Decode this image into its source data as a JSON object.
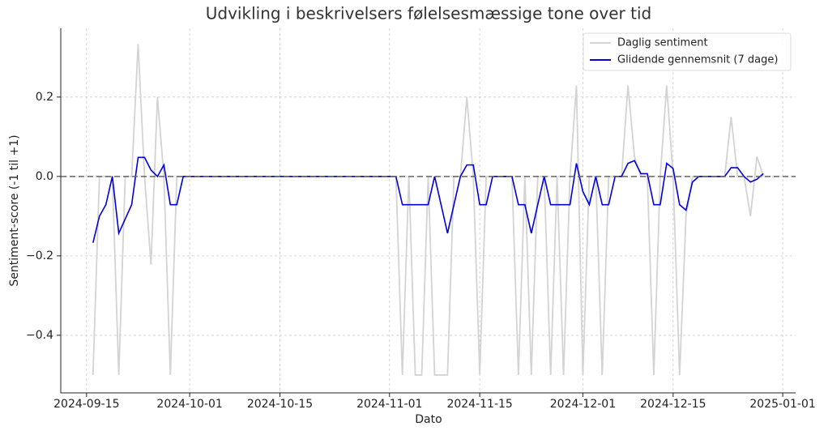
{
  "chart_data": {
    "type": "line",
    "title": "Udvikling i beskrivelsers følelsesmæssige tone over tid",
    "x_label": "Dato",
    "y_label": "Sentiment-score (-1 til +1)",
    "x": [
      "2024-09-16",
      "2024-09-17",
      "2024-09-18",
      "2024-09-19",
      "2024-09-20",
      "2024-09-21",
      "2024-09-22",
      "2024-09-23",
      "2024-09-24",
      "2024-09-25",
      "2024-09-26",
      "2024-09-27",
      "2024-09-28",
      "2024-09-29",
      "2024-09-30",
      "2024-10-01",
      "2024-10-02",
      "2024-10-03",
      "2024-10-04",
      "2024-10-05",
      "2024-10-06",
      "2024-10-07",
      "2024-10-08",
      "2024-10-09",
      "2024-10-10",
      "2024-10-11",
      "2024-10-12",
      "2024-10-13",
      "2024-10-14",
      "2024-10-15",
      "2024-10-16",
      "2024-10-17",
      "2024-10-18",
      "2024-10-19",
      "2024-10-20",
      "2024-10-21",
      "2024-10-22",
      "2024-10-23",
      "2024-10-24",
      "2024-10-25",
      "2024-10-26",
      "2024-10-27",
      "2024-10-28",
      "2024-10-29",
      "2024-10-30",
      "2024-10-31",
      "2024-11-01",
      "2024-11-02",
      "2024-11-03",
      "2024-11-04",
      "2024-11-05",
      "2024-11-06",
      "2024-11-07",
      "2024-11-08",
      "2024-11-09",
      "2024-11-10",
      "2024-11-11",
      "2024-11-12",
      "2024-11-13",
      "2024-11-14",
      "2024-11-15",
      "2024-11-16",
      "2024-11-17",
      "2024-11-18",
      "2024-11-19",
      "2024-11-20",
      "2024-11-21",
      "2024-11-22",
      "2024-11-23",
      "2024-11-24",
      "2024-11-25",
      "2024-11-26",
      "2024-11-27",
      "2024-11-28",
      "2024-11-29",
      "2024-11-30",
      "2024-12-01",
      "2024-12-02",
      "2024-12-03",
      "2024-12-04",
      "2024-12-05",
      "2024-12-06",
      "2024-12-07",
      "2024-12-08",
      "2024-12-09",
      "2024-12-10",
      "2024-12-11",
      "2024-12-12",
      "2024-12-13",
      "2024-12-14",
      "2024-12-15",
      "2024-12-16",
      "2024-12-17",
      "2024-12-18",
      "2024-12-19",
      "2024-12-20",
      "2024-12-21",
      "2024-12-22",
      "2024-12-23",
      "2024-12-24",
      "2024-12-25",
      "2024-12-26",
      "2024-12-27",
      "2024-12-28",
      "2024-12-29"
    ],
    "series": [
      {
        "name": "Daglig sentiment",
        "color": "#d3d3d3",
        "values": [
          -0.5,
          0,
          0,
          0,
          -0.5,
          0,
          0,
          0.333,
          0,
          -0.222,
          0.2,
          0,
          -0.5,
          0,
          0,
          0,
          0,
          0,
          0,
          0,
          0,
          0,
          0,
          0,
          0,
          0,
          0,
          0,
          0,
          0,
          0,
          0,
          0,
          0,
          0,
          0,
          0,
          0,
          0,
          0,
          0,
          0,
          0,
          0,
          0,
          0,
          0,
          0,
          -0.5,
          0,
          -0.5,
          -0.5,
          0,
          -0.5,
          -0.5,
          -0.5,
          0,
          0,
          0.2,
          0,
          -0.5,
          0,
          0,
          0,
          0,
          0,
          -0.5,
          0,
          -0.5,
          0,
          0,
          -0.5,
          0,
          -0.5,
          0,
          0.229,
          -0.5,
          0,
          0,
          -0.5,
          0,
          0,
          0,
          0.229,
          0.05,
          0,
          0,
          -0.5,
          0,
          0.229,
          0,
          -0.5,
          -0.1,
          0,
          0,
          0,
          0,
          0,
          0,
          0.15,
          0,
          0,
          -0.1,
          0.05,
          0
        ]
      },
      {
        "name": "Glidende gennemsnit (7 dage)",
        "color": "#0000dd",
        "values": [
          -0.167,
          -0.1,
          -0.071,
          0,
          -0.143,
          -0.107,
          -0.071,
          0.048,
          0.048,
          0.016,
          0,
          0.029,
          -0.071,
          -0.071,
          0,
          0,
          0,
          0,
          0,
          0,
          0,
          0,
          0,
          0,
          0,
          0,
          0,
          0,
          0,
          0,
          0,
          0,
          0,
          0,
          0,
          0,
          0,
          0,
          0,
          0,
          0,
          0,
          0,
          0,
          0,
          0,
          0,
          0,
          -0.071,
          -0.071,
          -0.071,
          -0.071,
          -0.071,
          0,
          -0.071,
          -0.143,
          -0.071,
          0,
          0.029,
          0.029,
          -0.071,
          -0.071,
          0,
          0,
          0,
          0,
          -0.071,
          -0.071,
          -0.143,
          -0.071,
          0,
          -0.071,
          -0.071,
          -0.071,
          -0.071,
          0.033,
          -0.038,
          -0.071,
          0,
          -0.071,
          -0.071,
          0,
          0,
          0.033,
          0.04,
          0.007,
          0.007,
          -0.071,
          -0.071,
          0.033,
          0.02,
          -0.071,
          -0.085,
          -0.014,
          0,
          0,
          0,
          0,
          0,
          0.022,
          0.022,
          0,
          -0.014,
          -0.007,
          0.007
        ]
      }
    ],
    "reference_line": 0,
    "xlim": [
      "2024-09-11",
      "2025-01-03"
    ],
    "xticks": [
      "2024-09-15",
      "2024-10-01",
      "2024-10-15",
      "2024-11-01",
      "2024-11-15",
      "2024-12-01",
      "2024-12-15",
      "2025-01-01"
    ],
    "ylim": [
      -0.545,
      0.373
    ],
    "yticks": [
      {
        "value": -0.4,
        "label": "−0.4"
      },
      {
        "value": -0.2,
        "label": "−0.2"
      },
      {
        "value": 0,
        "label": "0.0"
      },
      {
        "value": 0.2,
        "label": "0.2"
      }
    ],
    "grid": true,
    "legend": "upper right"
  }
}
